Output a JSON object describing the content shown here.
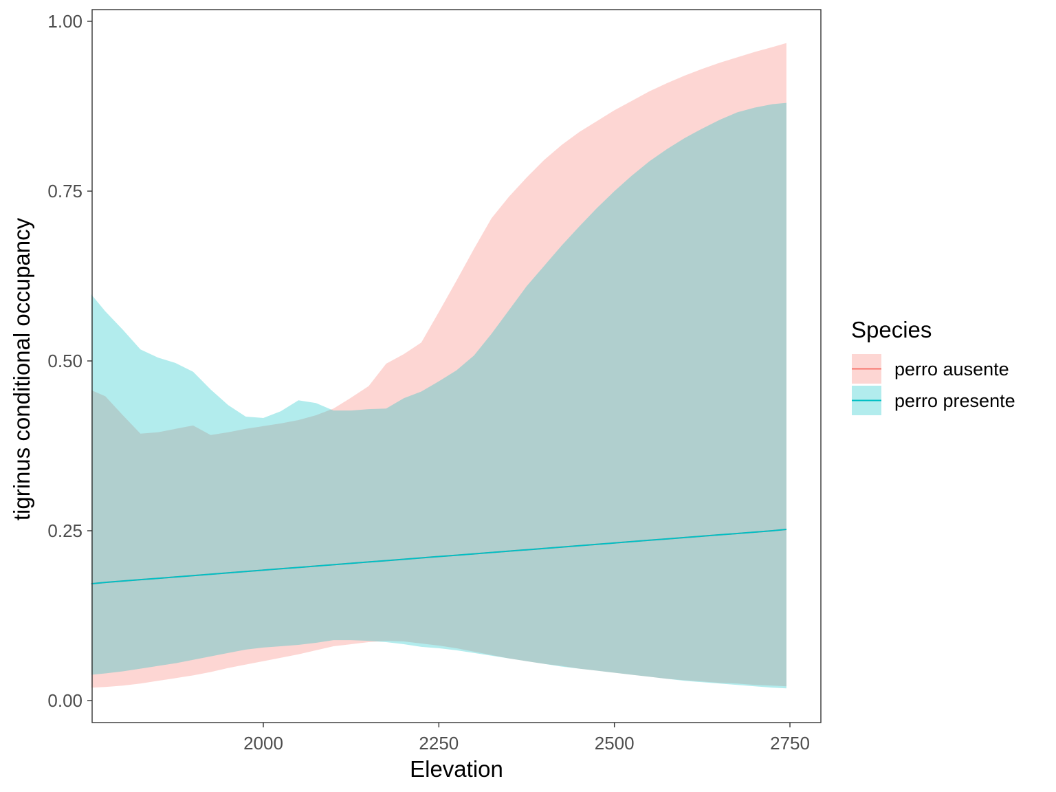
{
  "chart_data": {
    "type": "area",
    "title": "",
    "xlabel": "Elevation",
    "ylabel": "tigrinus conditional occupancy",
    "xlim": [
      1800,
      2750
    ],
    "ylim": [
      0,
      1
    ],
    "xticks": [
      2000,
      2250,
      2500,
      2750
    ],
    "xtick_labels": [
      "2000",
      "2250",
      "2500",
      "2750"
    ],
    "yticks": [
      0,
      0.25,
      0.5,
      0.75,
      1
    ],
    "ytick_labels": [
      "0.00",
      "0.25",
      "0.50",
      "0.75",
      "1.00"
    ],
    "grid": false,
    "legend": {
      "title": "Species",
      "position": "right",
      "entries": [
        "perro ausente",
        "perro presente"
      ]
    },
    "x": [
      1755,
      1775,
      1800,
      1825,
      1850,
      1875,
      1900,
      1925,
      1950,
      1975,
      2000,
      2025,
      2050,
      2075,
      2100,
      2125,
      2150,
      2175,
      2200,
      2225,
      2250,
      2275,
      2300,
      2325,
      2350,
      2375,
      2400,
      2425,
      2450,
      2475,
      2500,
      2525,
      2550,
      2575,
      2600,
      2625,
      2650,
      2675,
      2700,
      2725,
      2745
    ],
    "series": [
      {
        "name": "perro ausente",
        "color": "#F8766D",
        "fill": "#FCD5D3",
        "mean": [
          0.172,
          0.174,
          0.176,
          0.178,
          0.18,
          0.182,
          0.184,
          0.186,
          0.188,
          0.19,
          0.192,
          0.194,
          0.196,
          0.198,
          0.2,
          0.202,
          0.204,
          0.206,
          0.208,
          0.21,
          0.212,
          0.214,
          0.216,
          0.218,
          0.22,
          0.222,
          0.224,
          0.226,
          0.228,
          0.23,
          0.232,
          0.234,
          0.236,
          0.238,
          0.24,
          0.242,
          0.244,
          0.246,
          0.248,
          0.25,
          0.252
        ],
        "lower": [
          0.019,
          0.02,
          0.022,
          0.025,
          0.029,
          0.033,
          0.037,
          0.042,
          0.048,
          0.053,
          0.058,
          0.063,
          0.068,
          0.074,
          0.08,
          0.083,
          0.086,
          0.088,
          0.087,
          0.084,
          0.081,
          0.077,
          0.072,
          0.067,
          0.062,
          0.058,
          0.054,
          0.051,
          0.047,
          0.044,
          0.041,
          0.038,
          0.035,
          0.032,
          0.03,
          0.028,
          0.026,
          0.025,
          0.023,
          0.022,
          0.021
        ],
        "upper": [
          0.457,
          0.448,
          0.42,
          0.393,
          0.395,
          0.4,
          0.405,
          0.391,
          0.395,
          0.4,
          0.404,
          0.408,
          0.413,
          0.42,
          0.43,
          0.446,
          0.463,
          0.496,
          0.51,
          0.527,
          0.572,
          0.618,
          0.665,
          0.71,
          0.742,
          0.77,
          0.796,
          0.818,
          0.837,
          0.853,
          0.869,
          0.883,
          0.897,
          0.909,
          0.92,
          0.93,
          0.939,
          0.947,
          0.955,
          0.962,
          0.968
        ]
      },
      {
        "name": "perro presente",
        "color": "#00BFC4",
        "fill": "#B2ECEE",
        "mean": [
          0.172,
          0.174,
          0.176,
          0.178,
          0.18,
          0.182,
          0.184,
          0.186,
          0.188,
          0.19,
          0.192,
          0.194,
          0.196,
          0.198,
          0.2,
          0.202,
          0.204,
          0.206,
          0.208,
          0.21,
          0.212,
          0.214,
          0.216,
          0.218,
          0.22,
          0.222,
          0.224,
          0.226,
          0.228,
          0.23,
          0.232,
          0.234,
          0.236,
          0.238,
          0.24,
          0.242,
          0.244,
          0.246,
          0.248,
          0.25,
          0.252
        ],
        "lower": [
          0.038,
          0.04,
          0.043,
          0.047,
          0.051,
          0.055,
          0.06,
          0.065,
          0.07,
          0.075,
          0.078,
          0.08,
          0.082,
          0.085,
          0.089,
          0.089,
          0.088,
          0.086,
          0.083,
          0.079,
          0.077,
          0.074,
          0.07,
          0.066,
          0.062,
          0.058,
          0.054,
          0.05,
          0.047,
          0.044,
          0.041,
          0.038,
          0.035,
          0.032,
          0.029,
          0.027,
          0.025,
          0.023,
          0.021,
          0.019,
          0.018
        ],
        "upper": [
          0.598,
          0.573,
          0.546,
          0.517,
          0.505,
          0.497,
          0.484,
          0.458,
          0.435,
          0.418,
          0.416,
          0.426,
          0.442,
          0.438,
          0.427,
          0.427,
          0.429,
          0.43,
          0.445,
          0.455,
          0.47,
          0.486,
          0.508,
          0.54,
          0.575,
          0.61,
          0.64,
          0.67,
          0.698,
          0.725,
          0.75,
          0.773,
          0.794,
          0.812,
          0.828,
          0.842,
          0.855,
          0.866,
          0.873,
          0.878,
          0.88
        ]
      }
    ]
  }
}
